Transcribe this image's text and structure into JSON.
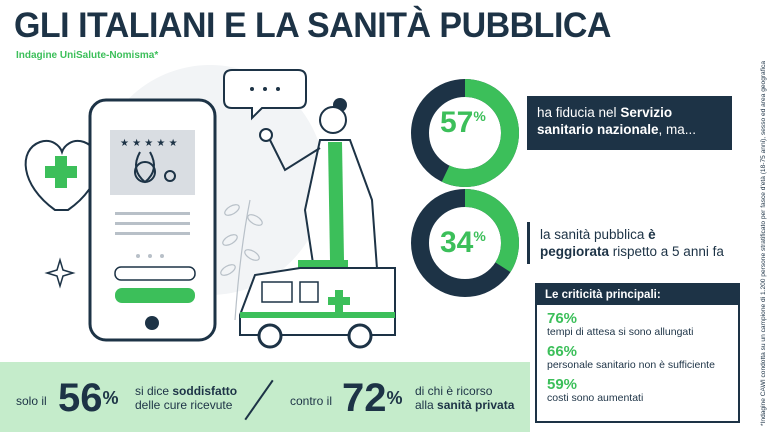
{
  "header": {
    "title": "GLI ITALIANI E LA SANITÀ PUBBLICA",
    "subtitle": "Indagine UniSalute-Nomisma*"
  },
  "side_note": "*Indagine CAWI condotta su un campione di 1.200 persone stratificato per fasce d'età (18-75 anni), sesso ed area geografica",
  "colors": {
    "navy": "#1d3346",
    "green": "#3cbf5a",
    "light_green": "#c5eccb"
  },
  "stats": [
    {
      "value": 57,
      "value_text": "57",
      "unit": "%",
      "text_before": "ha fiducia nel ",
      "text_bold": "Servizio sanitario nazionale",
      "text_after": ", ma..."
    },
    {
      "value": 34,
      "value_text": "34",
      "unit": "%",
      "text_before": "la sanità pubblica ",
      "text_bold": "è peggiorata",
      "text_after": " rispetto a 5 anni fa"
    }
  ],
  "criticita": {
    "title": "Le criticità principali:",
    "items": [
      {
        "pct": "76%",
        "text": "tempi di attesa si sono allungati"
      },
      {
        "pct": "66%",
        "text": "personale sanitario non è sufficiente"
      },
      {
        "pct": "59%",
        "text": "costi sono aumentati"
      }
    ]
  },
  "bottom": {
    "left_prefix": "solo il",
    "left_value": "56",
    "left_unit": "%",
    "left_text_1": "si dice ",
    "left_text_bold": "soddisfatto",
    "left_text_2": "delle cure ricevute",
    "right_prefix": "contro il",
    "right_value": "72",
    "right_unit": "%",
    "right_text_1": "di chi è ricorso",
    "right_text_2": "alla ",
    "right_text_bold": "sanità privata"
  }
}
